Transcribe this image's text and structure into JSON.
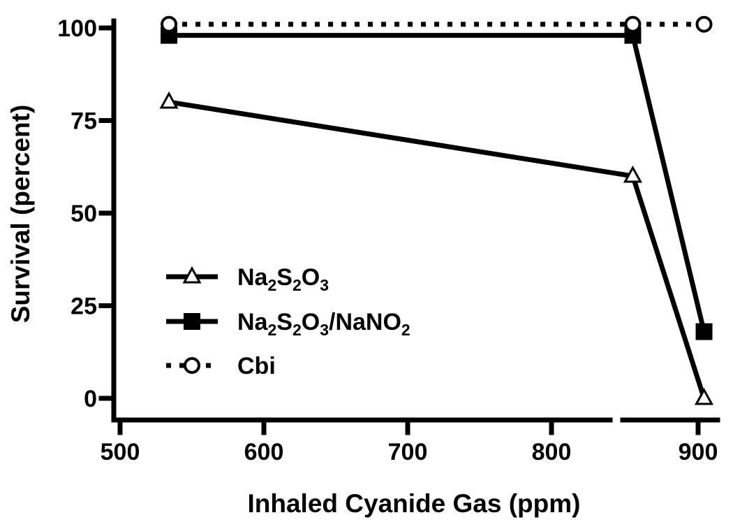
{
  "chart_data": {
    "type": "line",
    "title": "",
    "xlabel": "Inhaled Cyanide Gas (ppm)",
    "ylabel": "Survival (percent)",
    "xlim": [
      500,
      900
    ],
    "ylim": [
      0,
      100
    ],
    "xticks": [
      500,
      600,
      700,
      800,
      900
    ],
    "yticks": [
      0,
      25,
      50,
      75,
      100
    ],
    "x_axis_break": "between 800 and 900",
    "series": [
      {
        "name": "Na2S2O3",
        "legend_parts": [
          [
            "Na",
            ""
          ],
          [
            "2",
            "sub"
          ],
          [
            "S",
            ""
          ],
          [
            "2",
            "sub"
          ],
          [
            "O",
            ""
          ],
          [
            "3",
            "sub"
          ]
        ],
        "x": [
          534,
          801,
          909
        ],
        "y": [
          80,
          60,
          0
        ],
        "marker": "open-triangle",
        "line": "solid",
        "color": "#000000"
      },
      {
        "name": "Na2S2O3/NaNO2",
        "legend_parts": [
          [
            "Na",
            ""
          ],
          [
            "2",
            "sub"
          ],
          [
            "S",
            ""
          ],
          [
            "2",
            "sub"
          ],
          [
            "O",
            ""
          ],
          [
            "3",
            "sub"
          ],
          [
            "/NaNO",
            ""
          ],
          [
            "2",
            "sub"
          ]
        ],
        "x": [
          534,
          801,
          909
        ],
        "y": [
          98,
          98,
          18
        ],
        "marker": "filled-square",
        "line": "solid",
        "color": "#000000"
      },
      {
        "name": "Cbi",
        "legend_parts": [
          [
            "Cbi",
            ""
          ]
        ],
        "x": [
          534,
          801,
          909
        ],
        "y": [
          101,
          101,
          101
        ],
        "marker": "open-circle",
        "line": "dotted",
        "color": "#000000"
      }
    ],
    "legend_position": "lower-left",
    "grid": false
  }
}
